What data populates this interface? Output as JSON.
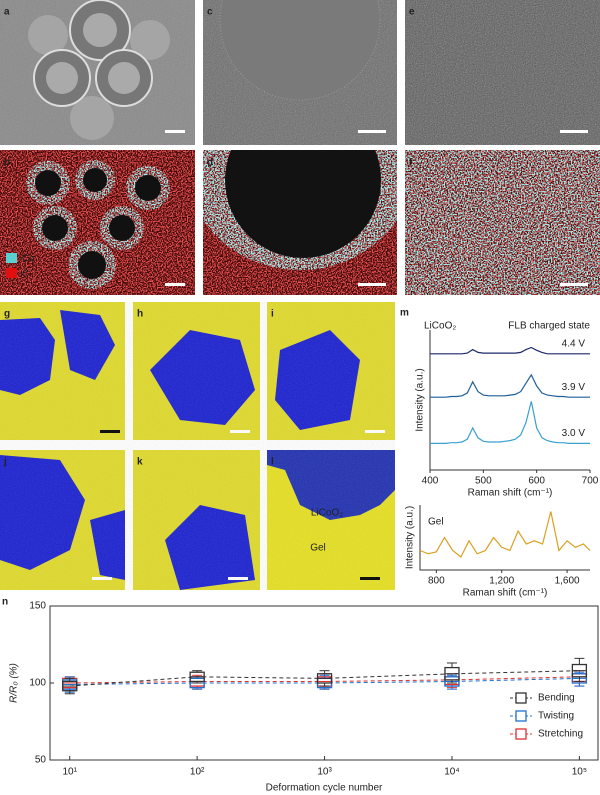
{
  "panel_labels": [
    "a",
    "b",
    "c",
    "d",
    "e",
    "f",
    "g",
    "h",
    "i",
    "j",
    "k",
    "l",
    "m",
    "n"
  ],
  "eds_legend": [
    "Co",
    "C"
  ],
  "panel_l_labels": [
    "LiCoO₂",
    "Gel"
  ],
  "chart_data": [
    {
      "type": "line",
      "annotations": [
        "LiCoO₂",
        "FLB charged state"
      ],
      "xlabel": "Raman shift (cm⁻¹)",
      "ylabel": "Intensity (a.u.)",
      "x": [
        400,
        410,
        420,
        430,
        440,
        450,
        460,
        470,
        480,
        490,
        500,
        510,
        520,
        530,
        540,
        550,
        560,
        570,
        580,
        590,
        600,
        610,
        620,
        630,
        640,
        650,
        660,
        670,
        680,
        690,
        700
      ],
      "xlim": [
        400,
        700
      ],
      "xticks": [
        400,
        500,
        600,
        700
      ],
      "ylim": [
        0,
        10
      ],
      "series": [
        {
          "name": "4.4 V",
          "color": "#1c2a6b",
          "values": [
            8.3,
            8.3,
            8.3,
            8.3,
            8.3,
            8.3,
            8.3,
            8.35,
            8.6,
            8.4,
            8.35,
            8.35,
            8.35,
            8.35,
            8.35,
            8.35,
            8.35,
            8.4,
            8.6,
            8.75,
            8.55,
            8.4,
            8.3,
            8.3,
            8.3,
            8.3,
            8.3,
            8.3,
            8.3,
            8.3,
            8.3
          ]
        },
        {
          "name": "3.9 V",
          "color": "#1f5f9a",
          "values": [
            5.2,
            5.2,
            5.2,
            5.2,
            5.25,
            5.25,
            5.3,
            5.5,
            6.3,
            5.6,
            5.35,
            5.3,
            5.3,
            5.3,
            5.3,
            5.35,
            5.4,
            5.6,
            6.2,
            6.8,
            6.0,
            5.5,
            5.35,
            5.3,
            5.25,
            5.25,
            5.2,
            5.2,
            5.2,
            5.2,
            5.2
          ]
        },
        {
          "name": "3.0 V",
          "color": "#3aa0d0",
          "values": [
            1.9,
            1.9,
            1.9,
            1.9,
            1.95,
            1.95,
            2.0,
            2.2,
            3.0,
            2.3,
            2.05,
            2.0,
            2.0,
            2.0,
            2.05,
            2.1,
            2.2,
            2.5,
            3.4,
            4.9,
            3.0,
            2.3,
            2.1,
            2.0,
            1.95,
            1.95,
            1.9,
            1.9,
            1.9,
            1.9,
            1.9
          ]
        }
      ]
    },
    {
      "type": "line",
      "xlabel": "Raman shift (cm⁻¹)",
      "ylabel": "Intensity (a.u.)",
      "x": [
        700,
        750,
        800,
        850,
        900,
        950,
        1000,
        1050,
        1100,
        1150,
        1200,
        1250,
        1300,
        1350,
        1400,
        1450,
        1500,
        1550,
        1600,
        1650,
        1700,
        1740
      ],
      "xlim": [
        700,
        1740
      ],
      "xticks": [
        800,
        {
          "value": 1200,
          "label": "1,200"
        },
        {
          "value": 1600,
          "label": "1,600"
        }
      ],
      "ylim": [
        0,
        10
      ],
      "series": [
        {
          "name": "Gel",
          "color": "#d9a020",
          "values": [
            3,
            2.5,
            2.8,
            5,
            3,
            2,
            4.5,
            2.5,
            3,
            5,
            3.5,
            3,
            6,
            4,
            4.5,
            4,
            9,
            3,
            4.5,
            3.5,
            4,
            3
          ]
        }
      ]
    },
    {
      "type": "box",
      "xlabel": "Deformation cycle number",
      "ylabel": "R/R₀ (%)",
      "x": [
        10,
        100,
        1000,
        10000,
        100000
      ],
      "log_x": true,
      "xlim": [
        7,
        140000
      ],
      "xticks": [
        {
          "value": 10,
          "label": "10¹"
        },
        {
          "value": 100,
          "label": "10²"
        },
        {
          "value": 1000,
          "label": "10³"
        },
        {
          "value": 10000,
          "label": "10⁴"
        },
        {
          "value": 100000,
          "label": "10⁵"
        }
      ],
      "ylim": [
        50,
        150
      ],
      "yticks": [
        50,
        100,
        150
      ],
      "legend": "lower right",
      "series": [
        {
          "name": "Bending",
          "color": "#333333",
          "values": [
            98,
            104,
            103,
            106,
            108
          ],
          "q1": [
            95,
            101,
            100,
            102,
            104
          ],
          "q3": [
            101,
            107,
            106,
            110,
            112
          ],
          "whislo": [
            93,
            100,
            98,
            100,
            101
          ],
          "whishi": [
            103,
            108,
            108,
            113,
            116
          ]
        },
        {
          "name": "Twisting",
          "color": "#1f6fd0",
          "values": [
            99,
            100,
            100,
            101,
            103
          ],
          "q1": [
            96,
            97,
            97,
            98,
            100
          ],
          "q3": [
            102,
            103,
            103,
            104,
            106
          ],
          "whislo": [
            94,
            96,
            96,
            96,
            98
          ],
          "whishi": [
            104,
            104,
            105,
            105,
            107
          ]
        },
        {
          "name": "Stretching",
          "color": "#e03030",
          "values": [
            100,
            101,
            101,
            102,
            104
          ],
          "q1": [
            97,
            98,
            98,
            99,
            101
          ],
          "q3": [
            103,
            104,
            104,
            104,
            106
          ],
          "whislo": [
            95,
            96,
            96,
            97,
            98
          ],
          "whishi": [
            104,
            105,
            106,
            106,
            108
          ]
        }
      ]
    }
  ]
}
